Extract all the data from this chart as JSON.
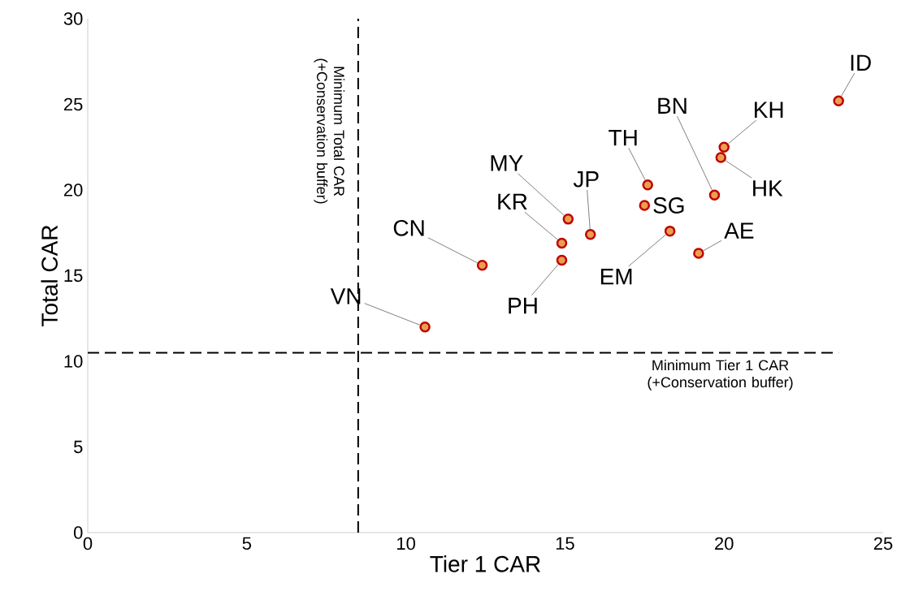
{
  "chart_data": {
    "type": "scatter",
    "xlabel": "Tier 1 CAR",
    "ylabel": "Total CAR",
    "x": [
      10.6,
      12.4,
      14.9,
      14.9,
      15.1,
      15.8,
      17.6,
      17.5,
      18.3,
      19.2,
      19.7,
      19.9,
      20.0,
      23.6
    ],
    "series": [
      {
        "color": "#c00000",
        "values": [
          12.0,
          15.6,
          16.9,
          15.9,
          18.3,
          17.4,
          20.3,
          19.1,
          17.6,
          16.3,
          19.7,
          21.9,
          22.5,
          25.2
        ]
      }
    ],
    "marker": "circle",
    "xlim": [
      0,
      25
    ],
    "xticks": [
      0,
      5,
      10,
      15,
      20,
      25
    ],
    "ylim": [
      0,
      30
    ],
    "yticks": [
      0,
      5,
      10,
      15,
      20,
      25,
      30
    ],
    "grid": false,
    "legend": false,
    "ref_lines": [
      {
        "axis": "x",
        "value": 8.5,
        "label": "Minimum Total CAR (+Conservation buffer)",
        "line_style": "dashed",
        "color": "#000000"
      },
      {
        "axis": "y",
        "value": 10.5,
        "label": "Minimum Tier 1 CAR (+Conservation buffer)",
        "line_style": "dashed",
        "color": "#000000"
      }
    ],
    "annotations": [
      {
        "text": "VN",
        "x": 10.6,
        "y": 12.0
      },
      {
        "text": "CN",
        "x": 12.4,
        "y": 15.6
      },
      {
        "text": "KR",
        "x": 14.9,
        "y": 16.9
      },
      {
        "text": "PH",
        "x": 14.9,
        "y": 15.9
      },
      {
        "text": "MY",
        "x": 15.1,
        "y": 18.3
      },
      {
        "text": "JP",
        "x": 15.8,
        "y": 17.4
      },
      {
        "text": "TH",
        "x": 17.6,
        "y": 20.3
      },
      {
        "text": "SG",
        "x": 17.5,
        "y": 19.1
      },
      {
        "text": "EM",
        "x": 18.3,
        "y": 17.6
      },
      {
        "text": "AE",
        "x": 19.2,
        "y": 16.3
      },
      {
        "text": "BN",
        "x": 19.7,
        "y": 19.7
      },
      {
        "text": "HK",
        "x": 19.9,
        "y": 21.9
      },
      {
        "text": "KH",
        "x": 20.0,
        "y": 22.5
      },
      {
        "text": "ID",
        "x": 23.6,
        "y": 25.2
      }
    ]
  }
}
